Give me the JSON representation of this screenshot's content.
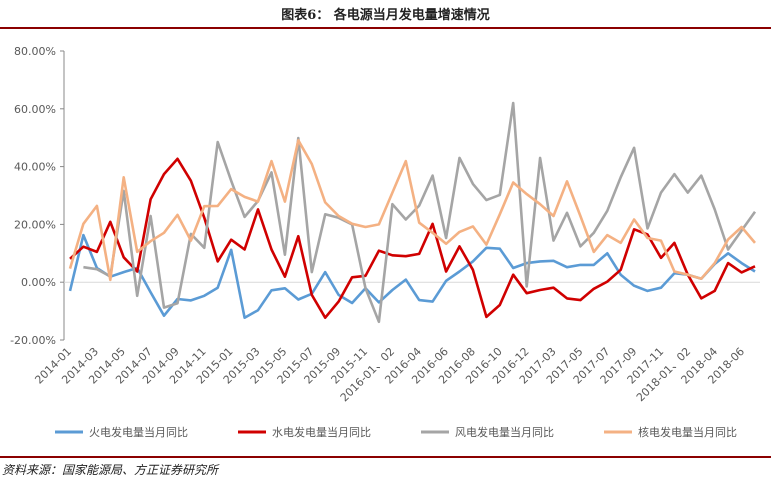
{
  "title": "图表6：  各电源当月发电量增速情况",
  "source": "资料来源：国家能源局、方正证券研究所",
  "chart_data": {
    "type": "line",
    "title": "图表6：  各电源当月发电量增速情况",
    "ylim": [
      -20,
      80
    ],
    "y_ticks": [
      "-20.00%",
      "0.00%",
      "20.00%",
      "40.00%",
      "60.00%",
      "80.00%"
    ],
    "y_tick_values": [
      -20,
      0,
      20,
      40,
      60,
      80
    ],
    "x_tick_labels": [
      "2014-01",
      "2014-03",
      "2014-05",
      "2014-07",
      "2014-09",
      "2014-11",
      "2015-01",
      "2015-03",
      "2015-05",
      "2015-07",
      "2015-09",
      "2015-11",
      "2016-01、02",
      "2016-04",
      "2016-06",
      "2016-08",
      "2016-10",
      "2016-12",
      "2017-03",
      "2017-05",
      "2017-07",
      "2017-09",
      "2017-11",
      "2018-01、02",
      "2018-04",
      "2018-06"
    ],
    "grid": false,
    "legend_position": "bottom",
    "series": [
      {
        "name": "火电发电量当月同比",
        "color": "#5b9bd5",
        "values": [
          -3,
          16.3,
          4.9,
          1.9,
          3.5,
          4.9,
          -3.5,
          -11.6,
          -5.8,
          -6.3,
          -4.7,
          -1.9,
          11.2,
          -12.3,
          -9.7,
          -2.8,
          -2.1,
          -6,
          -4,
          3.5,
          -4.4,
          -7.2,
          -2.1,
          -7,
          -2.7,
          0.9,
          -6.2,
          -6.7,
          0.5,
          3.7,
          7.2,
          11.9,
          11.6,
          4.9,
          6.6,
          7.2,
          7.4,
          5.2,
          6,
          6,
          10,
          2.6,
          -1.2,
          -3,
          -1.9,
          3.1,
          2.6,
          1.2,
          6.3,
          10,
          6.6,
          3.7
        ]
      },
      {
        "name": "水电发电量当月同比",
        "color": "#d00000",
        "values": [
          8.1,
          12.3,
          10.5,
          20.9,
          8.6,
          3.7,
          28.7,
          37.4,
          42.7,
          35.1,
          22.3,
          7.2,
          14.7,
          11.3,
          25.2,
          11.3,
          1.9,
          15.9,
          -4.4,
          -12.3,
          -6.7,
          1.7,
          2.2,
          10.9,
          9.3,
          9.0,
          9.8,
          20.2,
          3.7,
          12.4,
          4.3,
          -12,
          -7.9,
          2.6,
          -3.8,
          -2.7,
          -1.9,
          -5.6,
          -6.2,
          -2.3,
          0.2,
          4.3,
          18.3,
          16.5,
          8.4,
          13.6,
          2.6,
          -5.6,
          -3,
          6.6,
          3.4,
          5.5
        ]
      },
      {
        "name": "风电发电量当月同比",
        "color": "#a5a5a5",
        "values": [
          null,
          5.2,
          4.5,
          2,
          31.6,
          -4.7,
          22.9,
          -8.8,
          -7.3,
          16.7,
          11.9,
          48.5,
          35.1,
          22.6,
          28.1,
          38,
          9.5,
          49.9,
          3.5,
          23.5,
          22.3,
          20,
          -2.1,
          -13.7,
          27,
          21.7,
          26.5,
          36.9,
          15.3,
          43,
          34,
          28.4,
          30.2,
          62,
          -1.5,
          43,
          14.4,
          24,
          12.4,
          17.1,
          24.7,
          36.3,
          46.5,
          18.6,
          31,
          37.4,
          31,
          36.9,
          25.2,
          11.3,
          17.9,
          24.4
        ]
      },
      {
        "name": "核电发电量当月同比",
        "color": "#f4b183",
        "values": [
          4.7,
          20.2,
          26.4,
          0.8,
          36.3,
          10.5,
          14.2,
          17.1,
          23.3,
          14.4,
          26.3,
          26.4,
          32.2,
          29.5,
          27.9,
          41.9,
          27.9,
          49.1,
          40.9,
          27.6,
          22.9,
          20.2,
          19.1,
          20,
          31,
          41.9,
          20.6,
          17.1,
          13.3,
          17.4,
          19.3,
          13,
          23.5,
          34.5,
          30.5,
          27,
          22.9,
          34.9,
          22.9,
          10.5,
          16.3,
          13.6,
          21.7,
          15.3,
          14.4,
          3.7,
          2.6,
          1.2,
          6.6,
          14.8,
          19.1,
          13.6
        ]
      }
    ]
  }
}
